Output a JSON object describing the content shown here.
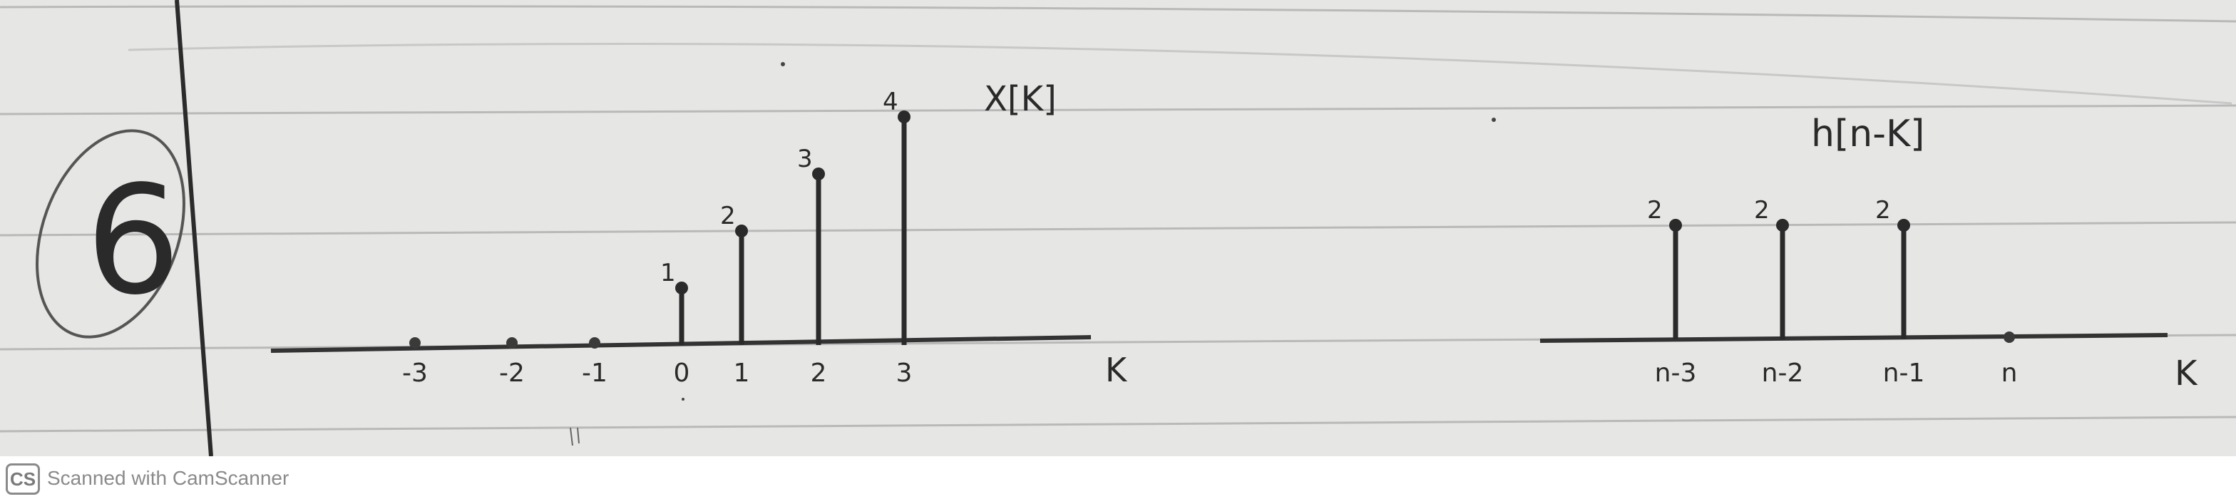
{
  "problem_number": "6",
  "footer": {
    "logo_text": "CS",
    "scanner_text": "Scanned with CamScanner"
  },
  "chart_data": [
    {
      "type": "stem",
      "title": "X[K]",
      "xlabel": "K",
      "x_tick_labels": [
        "-3",
        "-2",
        "-1",
        "0",
        "1",
        "2",
        "3"
      ],
      "x": [
        -3,
        -2,
        -1,
        0,
        1,
        2,
        3
      ],
      "values": [
        0,
        0,
        0,
        1,
        2,
        3,
        4
      ],
      "data_labels": [
        "",
        "",
        "",
        "1",
        "2",
        "3",
        "4"
      ]
    },
    {
      "type": "stem",
      "title": "h[n-K]",
      "xlabel": "K",
      "x_tick_labels": [
        "n-3",
        "n-2",
        "n-1",
        "n"
      ],
      "values": [
        2,
        2,
        2,
        0
      ],
      "data_labels": [
        "2",
        "2",
        "2",
        ""
      ]
    }
  ]
}
